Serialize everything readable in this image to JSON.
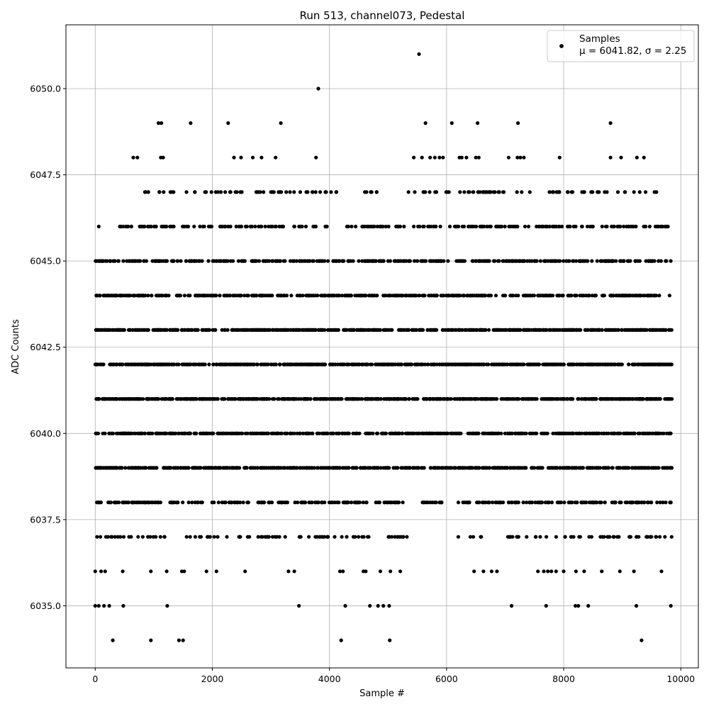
{
  "chart_data": {
    "type": "scatter",
    "title": "Run 513, channel073, Pedestal",
    "xlabel": "Sample #",
    "ylabel": "ADC Counts",
    "xlim": [
      -500,
      10300
    ],
    "ylim": [
      6033.2,
      6051.85
    ],
    "x_ticks": [
      0,
      2000,
      4000,
      6000,
      8000,
      10000
    ],
    "x_tick_labels": [
      "0",
      "2000",
      "4000",
      "6000",
      "8000",
      "10000"
    ],
    "y_ticks": [
      6035.0,
      6037.5,
      6040.0,
      6042.5,
      6045.0,
      6047.5,
      6050.0
    ],
    "y_tick_labels": [
      "6035.0",
      "6037.5",
      "6040.0",
      "6042.5",
      "6045.0",
      "6047.5",
      "6050.0"
    ],
    "grid": true,
    "legend": {
      "position": "top-right",
      "series_name": "Samples",
      "stats": "μ = 6041.82, σ = 2.25"
    },
    "marker_color": "#000000",
    "n_samples": 9850,
    "mean": 6041.82,
    "sigma": 2.25,
    "series": [
      {
        "name": "Samples",
        "points": [
          [
            300,
            6034
          ],
          [
            950,
            6034
          ],
          [
            1430,
            6034
          ],
          [
            1500,
            6034
          ],
          [
            4200,
            6034
          ],
          [
            5030,
            6034
          ],
          [
            9330,
            6034
          ],
          [
            0,
            6035
          ],
          [
            60,
            6035
          ],
          [
            150,
            6035
          ],
          [
            240,
            6035
          ],
          [
            480,
            6035
          ],
          [
            1230,
            6035
          ],
          [
            3480,
            6035
          ],
          [
            4270,
            6035
          ],
          [
            4690,
            6035
          ],
          [
            4830,
            6035
          ],
          [
            4920,
            6035
          ],
          [
            5020,
            6035
          ],
          [
            7110,
            6035
          ],
          [
            7700,
            6035
          ],
          [
            8200,
            6035
          ],
          [
            8250,
            6035
          ],
          [
            8420,
            6035
          ],
          [
            9240,
            6035
          ],
          [
            9830,
            6035
          ],
          [
            5530,
            6051
          ],
          [
            3810,
            6050
          ],
          [
            1080,
            6049
          ],
          [
            1130,
            6049
          ],
          [
            1630,
            6049
          ],
          [
            2270,
            6049
          ],
          [
            3170,
            6049
          ],
          [
            5640,
            6049
          ],
          [
            6090,
            6049
          ],
          [
            6530,
            6049
          ],
          [
            7220,
            6049
          ],
          [
            8800,
            6049
          ],
          [
            650,
            6048
          ],
          [
            720,
            6048
          ],
          [
            1120,
            6048
          ],
          [
            1160,
            6048
          ],
          [
            2370,
            6048
          ],
          [
            2490,
            6048
          ],
          [
            2690,
            6048
          ],
          [
            2840,
            6048
          ],
          [
            3080,
            6048
          ],
          [
            3770,
            6048
          ],
          [
            5440,
            6048
          ],
          [
            5580,
            6048
          ],
          [
            5720,
            6048
          ],
          [
            5800,
            6048
          ],
          [
            5880,
            6048
          ],
          [
            5940,
            6048
          ],
          [
            6220,
            6048
          ],
          [
            6260,
            6048
          ],
          [
            6340,
            6048
          ],
          [
            6500,
            6048
          ],
          [
            6550,
            6048
          ],
          [
            7060,
            6048
          ],
          [
            7210,
            6048
          ],
          [
            7260,
            6048
          ],
          [
            7320,
            6048
          ],
          [
            7930,
            6048
          ],
          [
            8800,
            6048
          ],
          [
            8980,
            6048
          ],
          [
            9250,
            6048
          ],
          [
            9370,
            6048
          ],
          [
            60,
            6046
          ],
          [
            420,
            6046
          ],
          [
            1560,
            6046
          ],
          [
            3200,
            6046
          ],
          [
            4300,
            6046
          ],
          [
            5010,
            6046
          ],
          [
            5700,
            6046
          ],
          [
            6600,
            6046
          ],
          [
            7400,
            6046
          ],
          [
            8500,
            6046
          ],
          [
            9730,
            6046
          ],
          [
            0,
            6036
          ],
          [
            100,
            6036
          ],
          [
            170,
            6036
          ],
          [
            470,
            6036
          ],
          [
            950,
            6036
          ],
          [
            1220,
            6036
          ],
          [
            1480,
            6036
          ],
          [
            1520,
            6036
          ],
          [
            1900,
            6036
          ],
          [
            2070,
            6036
          ],
          [
            2560,
            6036
          ],
          [
            3300,
            6036
          ],
          [
            3400,
            6036
          ],
          [
            4180,
            6036
          ],
          [
            4230,
            6036
          ],
          [
            4580,
            6036
          ],
          [
            4620,
            6036
          ],
          [
            4870,
            6036
          ],
          [
            5040,
            6036
          ],
          [
            5210,
            6036
          ],
          [
            6470,
            6036
          ],
          [
            6630,
            6036
          ],
          [
            6770,
            6036
          ],
          [
            6860,
            6036
          ],
          [
            7560,
            6036
          ],
          [
            7660,
            6036
          ],
          [
            7730,
            6036
          ],
          [
            7790,
            6036
          ],
          [
            7870,
            6036
          ],
          [
            8000,
            6036
          ],
          [
            8210,
            6036
          ],
          [
            8350,
            6036
          ],
          [
            8650,
            6036
          ],
          [
            8960,
            6036
          ],
          [
            9200,
            6036
          ],
          [
            9670,
            6036
          ]
        ],
        "bands": [
          {
            "y": 6047,
            "count": 160,
            "gaps": [
              [
                0,
                420
              ],
              [
                4120,
                4480
              ],
              [
                4840,
                5330
              ],
              [
                9720,
                9850
              ]
            ]
          },
          {
            "y": 6046,
            "count": 260,
            "gaps": [
              [
                0,
                420
              ],
              [
                3960,
                4320
              ]
            ]
          },
          {
            "y": 6045,
            "count": 380,
            "gaps": []
          },
          {
            "y": 6044,
            "count": 480,
            "gaps": []
          },
          {
            "y": 6043,
            "count": 600,
            "gaps": []
          },
          {
            "y": 6042,
            "count": 700,
            "gaps": []
          },
          {
            "y": 6041,
            "count": 720,
            "gaps": []
          },
          {
            "y": 6040,
            "count": 560,
            "gaps": []
          },
          {
            "y": 6039,
            "count": 560,
            "gaps": []
          },
          {
            "y": 6038,
            "count": 330,
            "gaps": [
              [
                5320,
                5560
              ],
              [
                5920,
                6200
              ]
            ]
          },
          {
            "y": 6037,
            "count": 150,
            "gaps": [
              [
                5340,
                6180
              ]
            ]
          }
        ]
      }
    ]
  }
}
